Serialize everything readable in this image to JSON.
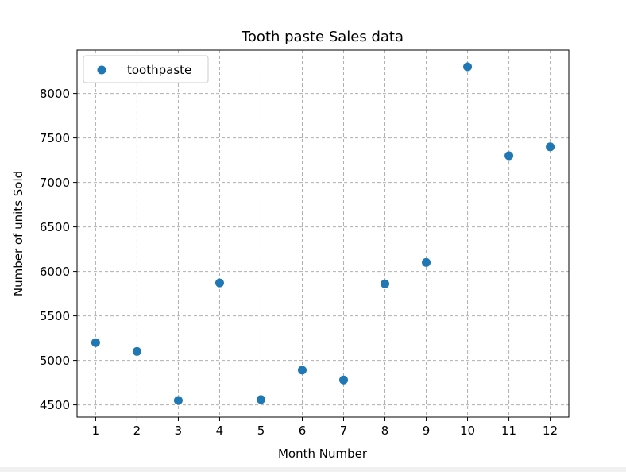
{
  "chart_data": {
    "type": "scatter",
    "title": "Tooth paste Sales data",
    "xlabel": "Month Number",
    "ylabel": "Number of units Sold",
    "x": [
      1,
      2,
      3,
      4,
      5,
      6,
      7,
      8,
      9,
      10,
      11,
      12
    ],
    "series": [
      {
        "name": "toothpaste",
        "color": "#1f77b4",
        "values": [
          5200,
          5100,
          4550,
          5870,
          4560,
          4890,
          4780,
          5860,
          6100,
          8300,
          7300,
          7400
        ]
      }
    ],
    "xticks": [
      1,
      2,
      3,
      4,
      5,
      6,
      7,
      8,
      9,
      10,
      11,
      12
    ],
    "yticks": [
      4500,
      5000,
      5500,
      6000,
      6500,
      7000,
      7500,
      8000
    ],
    "xlim": [
      0.55,
      12.45
    ],
    "ylim": [
      4362.5,
      8487.5
    ],
    "grid": true,
    "grid_style": "dashed",
    "legend_position": "top-left"
  }
}
